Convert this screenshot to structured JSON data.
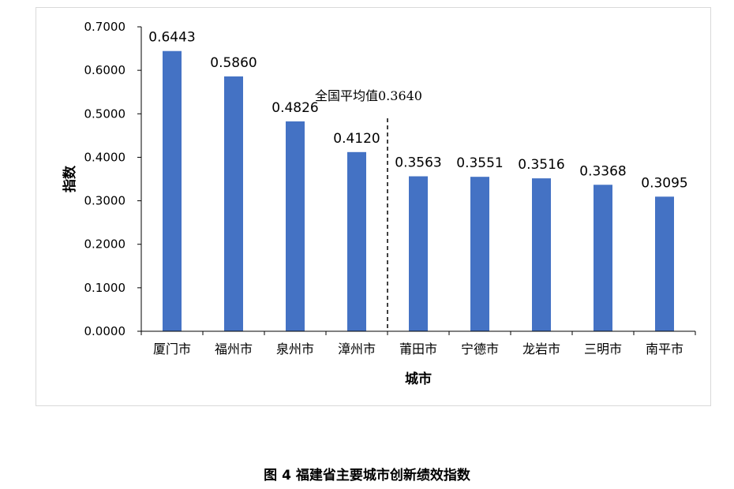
{
  "caption": "图 4 福建省主要城市创新绩效指数",
  "chart_data": {
    "type": "bar",
    "title": "",
    "xlabel": "城市",
    "ylabel": "指数",
    "categories": [
      "厦门市",
      "福州市",
      "泉州市",
      "漳州市",
      "莆田市",
      "宁德市",
      "龙岩市",
      "三明市",
      "南平市"
    ],
    "values": [
      0.6443,
      0.586,
      0.4826,
      0.412,
      0.3563,
      0.3551,
      0.3516,
      0.3368,
      0.3095
    ],
    "value_labels": [
      "0.6443",
      "0.5860",
      "0.4826",
      "0.4120",
      "0.3563",
      "0.3551",
      "0.3516",
      "0.3368",
      "0.3095"
    ],
    "ylim": [
      0,
      0.7
    ],
    "yticks": [
      "0.0000",
      "0.1000",
      "0.2000",
      "0.3000",
      "0.4000",
      "0.5000",
      "0.6000",
      "0.7000"
    ],
    "grid": false,
    "bar_color": "#4472C4",
    "reference_line": {
      "label": "全国平均值0.3640",
      "value": 0.364,
      "between_categories": [
        "漳州市",
        "莆田市"
      ],
      "style": "dashed"
    }
  }
}
